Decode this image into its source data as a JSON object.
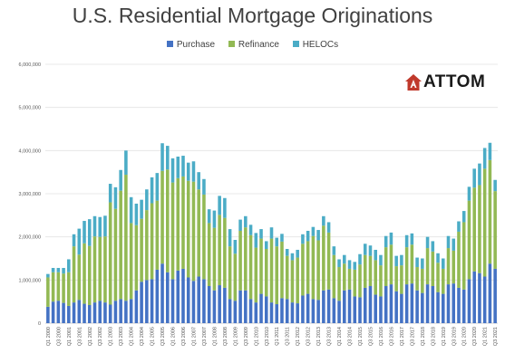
{
  "chart_data": {
    "type": "bar",
    "stacked": true,
    "title": "U.S. Residential Mortgage Originations",
    "xlabel": "",
    "ylabel": "",
    "ylim": [
      0,
      6000000
    ],
    "yticks": [
      0,
      1000000,
      2000000,
      3000000,
      4000000,
      5000000,
      6000000
    ],
    "ytick_labels": [
      "0",
      "1,000,000",
      "2,000,000",
      "3,000,000",
      "4,000,000",
      "5,000,000",
      "6,000,000"
    ],
    "grid": true,
    "legend_position": "top",
    "categories": [
      "Q1 2000",
      "Q2 2000",
      "Q3 2000",
      "Q4 2000",
      "Q1 2001",
      "Q2 2001",
      "Q3 2001",
      "Q4 2001",
      "Q1 2002",
      "Q2 2002",
      "Q3 2002",
      "Q4 2002",
      "Q1 2003",
      "Q2 2003",
      "Q3 2003",
      "Q4 2003",
      "Q1 2004",
      "Q2 2004",
      "Q3 2004",
      "Q4 2004",
      "Q1 2005",
      "Q2 2005",
      "Q3 2005",
      "Q4 2005",
      "Q1 2006",
      "Q2 2006",
      "Q3 2006",
      "Q4 2006",
      "Q1 2007",
      "Q2 2007",
      "Q3 2007",
      "Q4 2007",
      "Q1 2008",
      "Q2 2008",
      "Q3 2008",
      "Q4 2008",
      "Q1 2009",
      "Q2 2009",
      "Q3 2009",
      "Q4 2009",
      "Q1 2010",
      "Q2 2010",
      "Q3 2010",
      "Q4 2010",
      "Q1 2011",
      "Q2 2011",
      "Q3 2011",
      "Q4 2011",
      "Q1 2012",
      "Q2 2012",
      "Q3 2012",
      "Q4 2012",
      "Q1 2013",
      "Q2 2013",
      "Q3 2013",
      "Q4 2013",
      "Q1 2014",
      "Q2 2014",
      "Q3 2014",
      "Q4 2014",
      "Q1 2015",
      "Q2 2015",
      "Q3 2015",
      "Q4 2015",
      "Q1 2016",
      "Q2 2016",
      "Q3 2016",
      "Q4 2016",
      "Q1 2017",
      "Q2 2017",
      "Q3 2017",
      "Q4 2017",
      "Q1 2018",
      "Q2 2018",
      "Q3 2018",
      "Q4 2018",
      "Q1 2019",
      "Q2 2019",
      "Q3 2019",
      "Q4 2019",
      "Q1 2020",
      "Q2 2020",
      "Q3 2020",
      "Q4 2020",
      "Q1 2021",
      "Q2 2021",
      "Q3 2021"
    ],
    "xtick_labels": [
      "Q1 2000",
      "Q3 2000",
      "Q1 2001",
      "Q3 2001",
      "Q1 2002",
      "Q3 2002",
      "Q1 2003",
      "Q3 2003",
      "Q1 2004",
      "Q3 2004",
      "Q1 2005",
      "Q3 2005",
      "Q1 2006",
      "Q3 2006",
      "Q1 2007",
      "Q3 2007",
      "Q1 2008",
      "Q3 2008",
      "Q1 2009",
      "Q3 2009",
      "Q1 2010",
      "Q3 2010",
      "Q1 2011",
      "Q3 2011",
      "Q1 2012",
      "Q3 2012",
      "Q1 2013",
      "Q3 2013",
      "Q1 2014",
      "Q3 2014",
      "Q1 2015",
      "Q3 2015",
      "Q1 2016",
      "Q3 2016",
      "Q1 2017",
      "Q3 2017",
      "Q1 2018",
      "Q3 2018",
      "Q1 2019",
      "Q3 2019",
      "Q1 2020",
      "Q3 2020",
      "Q1 2021",
      "Q3 2021"
    ],
    "series": [
      {
        "name": "Purchase",
        "color": "#4472C4",
        "values": [
          380000,
          500000,
          520000,
          470000,
          400000,
          480000,
          540000,
          450000,
          420000,
          480000,
          520000,
          480000,
          430000,
          520000,
          560000,
          520000,
          560000,
          760000,
          960000,
          1000000,
          1020000,
          1240000,
          1380000,
          1180000,
          1020000,
          1220000,
          1260000,
          1060000,
          980000,
          1080000,
          1020000,
          860000,
          760000,
          880000,
          820000,
          560000,
          520000,
          760000,
          760000,
          560000,
          480000,
          680000,
          620000,
          480000,
          440000,
          580000,
          560000,
          480000,
          460000,
          640000,
          680000,
          560000,
          540000,
          760000,
          780000,
          580000,
          520000,
          760000,
          780000,
          620000,
          600000,
          820000,
          860000,
          660000,
          620000,
          860000,
          900000,
          740000,
          680000,
          900000,
          920000,
          760000,
          700000,
          900000,
          860000,
          720000,
          680000,
          900000,
          920000,
          820000,
          780000,
          1020000,
          1200000,
          1160000,
          1080000,
          1380000,
          1260000
        ]
      },
      {
        "name": "Refinance",
        "color": "#92B954",
        "values": [
          680000,
          680000,
          660000,
          680000,
          780000,
          1300000,
          1050000,
          1400000,
          1370000,
          1530000,
          1480000,
          1530000,
          2370000,
          2130000,
          2510000,
          2920000,
          1760000,
          1510000,
          1460000,
          1620000,
          1760000,
          1600000,
          2150000,
          2380000,
          2240000,
          2140000,
          2140000,
          2240000,
          2300000,
          2020000,
          1960000,
          1460000,
          1450000,
          1630000,
          1620000,
          1220000,
          1090000,
          1380000,
          1460000,
          1480000,
          1270000,
          1280000,
          1100000,
          1480000,
          1340000,
          1310000,
          1000000,
          980000,
          1060000,
          1200000,
          1220000,
          1460000,
          1380000,
          1500000,
          1320000,
          1000000,
          780000,
          620000,
          480000,
          620000,
          760000,
          760000,
          700000,
          800000,
          720000,
          900000,
          920000,
          580000,
          660000,
          860000,
          900000,
          540000,
          560000,
          840000,
          800000,
          680000,
          580000,
          840000,
          760000,
          1300000,
          1560000,
          1820000,
          1940000,
          2040000,
          2500000,
          2400000,
          1800000
        ]
      },
      {
        "name": "HELOCs",
        "color": "#4BACC6",
        "values": [
          80000,
          100000,
          100000,
          130000,
          300000,
          280000,
          600000,
          520000,
          620000,
          470000,
          460000,
          480000,
          430000,
          500000,
          480000,
          560000,
          600000,
          500000,
          440000,
          480000,
          600000,
          640000,
          640000,
          550000,
          560000,
          500000,
          480000,
          420000,
          470000,
          400000,
          360000,
          320000,
          400000,
          440000,
          460000,
          400000,
          320000,
          260000,
          260000,
          240000,
          340000,
          220000,
          180000,
          260000,
          200000,
          180000,
          160000,
          160000,
          180000,
          220000,
          240000,
          210000,
          240000,
          220000,
          240000,
          200000,
          180000,
          200000,
          200000,
          180000,
          240000,
          260000,
          240000,
          240000,
          240000,
          260000,
          280000,
          240000,
          240000,
          280000,
          260000,
          220000,
          240000,
          260000,
          240000,
          220000,
          240000,
          280000,
          280000,
          240000,
          260000,
          320000,
          440000,
          500000,
          480000,
          400000,
          260000
        ]
      }
    ]
  },
  "logo_text": "ATTOM",
  "logo_color": "#C0392B"
}
